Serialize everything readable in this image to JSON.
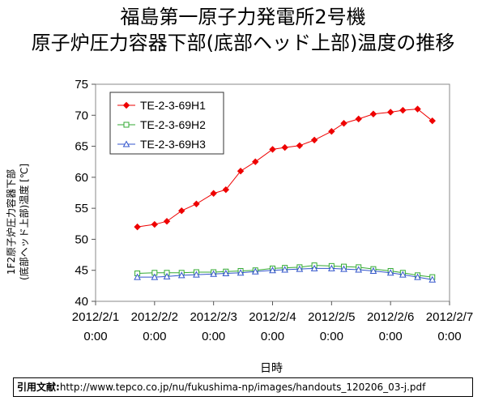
{
  "title_line1": "福島第一原子力発電所2号機",
  "title_line2": "原子炉圧力容器下部(底部ヘッド上部)温度の推移",
  "source": {
    "label": "引用文献:",
    "url": "http://www.tepco.co.jp/nu/fukushima-np/images/handouts_120206_03-j.pdf"
  },
  "chart_data": {
    "type": "line",
    "xlabel": "日時",
    "ylabel_line1": "1F2原子炉圧力容器下部",
    "ylabel_line2": "(底部ヘッド上部)温度 [℃]",
    "ylim": [
      40,
      75
    ],
    "yticks": [
      40,
      45,
      50,
      55,
      60,
      65,
      70,
      75
    ],
    "xlim": [
      "2012/2/1 0:00",
      "2012/2/7 0:00"
    ],
    "xticks": [
      {
        "date": "2012/2/1",
        "time": "0:00"
      },
      {
        "date": "2012/2/2",
        "time": "0:00"
      },
      {
        "date": "2012/2/3",
        "time": "0:00"
      },
      {
        "date": "2012/2/4",
        "time": "0:00"
      },
      {
        "date": "2012/2/5",
        "time": "0:00"
      },
      {
        "date": "2012/2/6",
        "time": "0:00"
      },
      {
        "date": "2012/2/7",
        "time": "0:00"
      }
    ],
    "grid": false,
    "legend_position": "top-left",
    "x": [
      "2012/2/1 17:00",
      "2012/2/2 0:00",
      "2012/2/2 5:00",
      "2012/2/2 11:00",
      "2012/2/2 17:00",
      "2012/2/3 0:00",
      "2012/2/3 5:00",
      "2012/2/3 11:00",
      "2012/2/3 17:00",
      "2012/2/4 0:00",
      "2012/2/4 5:00",
      "2012/2/4 11:00",
      "2012/2/4 17:00",
      "2012/2/5 0:00",
      "2012/2/5 5:00",
      "2012/2/5 11:00",
      "2012/2/5 17:00",
      "2012/2/6 0:00",
      "2012/2/6 5:00",
      "2012/2/6 11:00",
      "2012/2/6 17:00"
    ],
    "series": [
      {
        "name": "TE-2-3-69H1",
        "color": "#ee0000",
        "marker": "diamond",
        "values": [
          52.0,
          52.4,
          52.9,
          54.6,
          55.7,
          57.4,
          58.0,
          61.0,
          62.5,
          64.5,
          64.8,
          65.1,
          66.0,
          67.4,
          68.7,
          69.4,
          70.2,
          70.5,
          70.8,
          71.0,
          69.1
        ]
      },
      {
        "name": "TE-2-3-69H2",
        "color": "#33aa33",
        "marker": "square",
        "values": [
          44.5,
          44.6,
          44.6,
          44.6,
          44.7,
          44.7,
          44.8,
          44.9,
          45.0,
          45.3,
          45.4,
          45.5,
          45.8,
          45.7,
          45.6,
          45.5,
          45.2,
          44.9,
          44.6,
          44.2,
          43.9
        ]
      },
      {
        "name": "TE-2-3-69H3",
        "color": "#3355cc",
        "marker": "triangle",
        "values": [
          43.9,
          43.9,
          44.0,
          44.2,
          44.3,
          44.4,
          44.5,
          44.6,
          44.8,
          45.0,
          45.1,
          45.2,
          45.3,
          45.3,
          45.2,
          45.1,
          44.9,
          44.6,
          44.3,
          43.9,
          43.5
        ]
      }
    ]
  }
}
